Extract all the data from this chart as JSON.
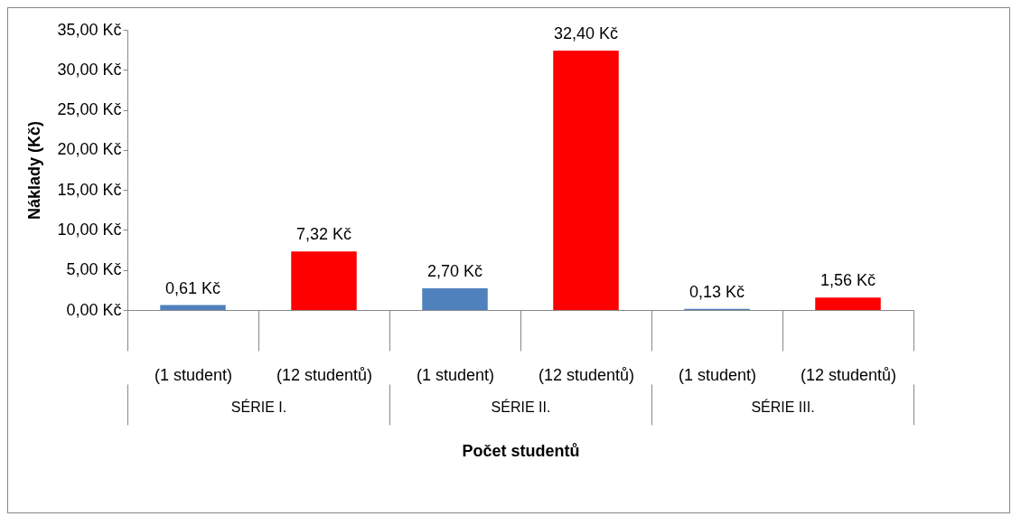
{
  "chart_data": {
    "type": "bar",
    "ylabel": "Náklady (Kč)",
    "xlabel": "Počet studentů",
    "categories": [
      "(1 student)",
      "(12 studentů)",
      "(1 student)",
      "(12 studentů)",
      "(1 student)",
      "(12 studentů)"
    ],
    "values": [
      0.61,
      7.32,
      2.7,
      32.4,
      0.13,
      1.56
    ],
    "colors": [
      "#4f81bd",
      "#ff0000",
      "#4f81bd",
      "#ff0000",
      "#4f81bd",
      "#ff0000"
    ],
    "value_labels": [
      "0,61 Kč",
      "7,32 Kč",
      "2,70 Kč",
      "32,40 Kč",
      "0,13 Kč",
      "1,56 Kč"
    ],
    "ylim": [
      0,
      35
    ],
    "yticks": [
      {
        "value": 0,
        "label": "0,00 Kč"
      },
      {
        "value": 5,
        "label": "5,00 Kč"
      },
      {
        "value": 10,
        "label": "10,00 Kč"
      },
      {
        "value": 15,
        "label": "15,00 Kč"
      },
      {
        "value": 20,
        "label": "20,00 Kč"
      },
      {
        "value": 25,
        "label": "25,00 Kč"
      },
      {
        "value": 30,
        "label": "30,00 Kč"
      },
      {
        "value": 35,
        "label": "35,00 Kč"
      }
    ],
    "annotations": [
      "SÉRIE I.",
      "SÉRIE II.",
      "SÉRIE III."
    ],
    "grid": false
  }
}
